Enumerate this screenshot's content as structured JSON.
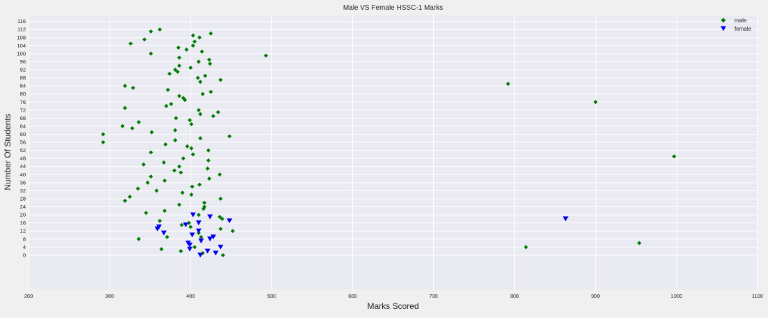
{
  "chart_data": {
    "type": "scatter",
    "title": "Male VS Female HSSC-1 Marks",
    "xlabel": "Marks Scored",
    "ylabel": "Number Of Students",
    "xlim": [
      200,
      1100
    ],
    "ylim": [
      -17,
      119
    ],
    "xticks": [
      200,
      300,
      400,
      500,
      600,
      700,
      800,
      900,
      1000,
      1100
    ],
    "yticks": [
      0,
      4,
      8,
      12,
      16,
      20,
      24,
      28,
      32,
      36,
      40,
      44,
      48,
      52,
      56,
      60,
      64,
      68,
      72,
      76,
      80,
      84,
      88,
      92,
      96,
      100,
      104,
      108,
      112,
      116
    ],
    "grid": true,
    "legend_position": "top-right",
    "series": [
      {
        "name": "male",
        "marker": "diamond",
        "color": "#007a00",
        "points": [
          [
            440,
            0
          ],
          [
            415,
            1
          ],
          [
            388,
            2
          ],
          [
            364,
            3
          ],
          [
            814,
            4
          ],
          [
            405,
            4
          ],
          [
            954,
            6
          ],
          [
            371,
            9
          ],
          [
            336,
            8
          ],
          [
            413,
            9
          ],
          [
            410,
            11
          ],
          [
            452,
            12
          ],
          [
            437,
            13
          ],
          [
            400,
            14
          ],
          [
            389,
            15
          ],
          [
            398,
            16
          ],
          [
            362,
            17
          ],
          [
            439,
            18
          ],
          [
            436,
            19
          ],
          [
            410,
            20
          ],
          [
            345,
            21
          ],
          [
            368,
            22
          ],
          [
            416,
            23
          ],
          [
            417,
            24
          ],
          [
            386,
            25
          ],
          [
            417,
            26
          ],
          [
            319,
            27
          ],
          [
            437,
            28
          ],
          [
            325,
            29
          ],
          [
            401,
            30
          ],
          [
            390,
            31
          ],
          [
            358,
            32
          ],
          [
            335,
            33
          ],
          [
            402,
            34
          ],
          [
            411,
            35
          ],
          [
            347,
            36
          ],
          [
            368,
            37
          ],
          [
            423,
            38
          ],
          [
            351,
            39
          ],
          [
            388,
            41
          ],
          [
            436,
            40
          ],
          [
            380,
            42
          ],
          [
            386,
            44
          ],
          [
            421,
            43
          ],
          [
            342,
            45
          ],
          [
            367,
            46
          ],
          [
            422,
            47
          ],
          [
            391,
            48
          ],
          [
            997,
            49
          ],
          [
            403,
            50
          ],
          [
            351,
            51
          ],
          [
            422,
            52
          ],
          [
            401,
            53
          ],
          [
            396,
            54
          ],
          [
            369,
            55
          ],
          [
            292,
            56
          ],
          [
            381,
            57
          ],
          [
            412,
            58
          ],
          [
            448,
            59
          ],
          [
            292,
            60
          ],
          [
            352,
            61
          ],
          [
            381,
            62
          ],
          [
            328,
            63
          ],
          [
            316,
            64
          ],
          [
            401,
            65
          ],
          [
            336,
            66
          ],
          [
            399,
            67
          ],
          [
            382,
            68
          ],
          [
            428,
            69
          ],
          [
            412,
            70
          ],
          [
            434,
            71
          ],
          [
            410,
            72
          ],
          [
            319,
            73
          ],
          [
            370,
            74
          ],
          [
            376,
            75
          ],
          [
            900,
            76
          ],
          [
            393,
            77
          ],
          [
            391,
            78
          ],
          [
            386,
            79
          ],
          [
            415,
            80
          ],
          [
            425,
            81
          ],
          [
            372,
            82
          ],
          [
            329,
            83
          ],
          [
            319,
            84
          ],
          [
            792,
            85
          ],
          [
            412,
            86
          ],
          [
            437,
            87
          ],
          [
            409,
            88
          ],
          [
            418,
            89
          ],
          [
            374,
            90
          ],
          [
            384,
            91
          ],
          [
            381,
            92
          ],
          [
            400,
            93
          ],
          [
            386,
            94
          ],
          [
            424,
            95
          ],
          [
            410,
            96
          ],
          [
            423,
            97
          ],
          [
            386,
            98
          ],
          [
            493,
            99
          ],
          [
            351,
            100
          ],
          [
            414,
            101
          ],
          [
            395,
            102
          ],
          [
            385,
            103
          ],
          [
            403,
            104
          ],
          [
            326,
            105
          ],
          [
            405,
            106
          ],
          [
            343,
            107
          ],
          [
            411,
            108
          ],
          [
            403,
            109
          ],
          [
            425,
            110
          ],
          [
            351,
            111
          ],
          [
            362,
            112
          ]
        ]
      },
      {
        "name": "female",
        "marker": "triangle-down",
        "color": "#0000ee",
        "points": [
          [
            412,
            0
          ],
          [
            431,
            1
          ],
          [
            421,
            2
          ],
          [
            399,
            3
          ],
          [
            437,
            4
          ],
          [
            399,
            5
          ],
          [
            397,
            6
          ],
          [
            413,
            7
          ],
          [
            424,
            8
          ],
          [
            428,
            9
          ],
          [
            402,
            10
          ],
          [
            367,
            11
          ],
          [
            410,
            12
          ],
          [
            359,
            13
          ],
          [
            361,
            14
          ],
          [
            394,
            15
          ],
          [
            410,
            16
          ],
          [
            448,
            17
          ],
          [
            863,
            18
          ],
          [
            424,
            19
          ],
          [
            403,
            20
          ]
        ]
      }
    ]
  }
}
